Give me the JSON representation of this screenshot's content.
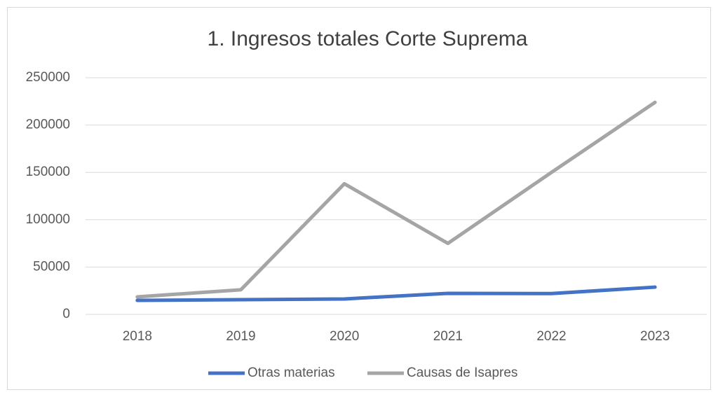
{
  "chart_data": {
    "type": "line",
    "title": "1. Ingresos totales Corte Suprema",
    "categories": [
      "2018",
      "2019",
      "2020",
      "2021",
      "2022",
      "2023"
    ],
    "series": [
      {
        "name": "Otras materias",
        "color": "#4472c4",
        "values": [
          14800,
          15500,
          16300,
          22200,
          22000,
          28800
        ]
      },
      {
        "name": "Causas de Isapres",
        "color": "#a5a5a5",
        "values": [
          18500,
          26000,
          138000,
          75000,
          150000,
          224000
        ]
      }
    ],
    "ylim": [
      0,
      250000
    ],
    "yticks": [
      0,
      50000,
      100000,
      150000,
      200000,
      250000
    ],
    "grid": true,
    "legend": "bottom"
  }
}
